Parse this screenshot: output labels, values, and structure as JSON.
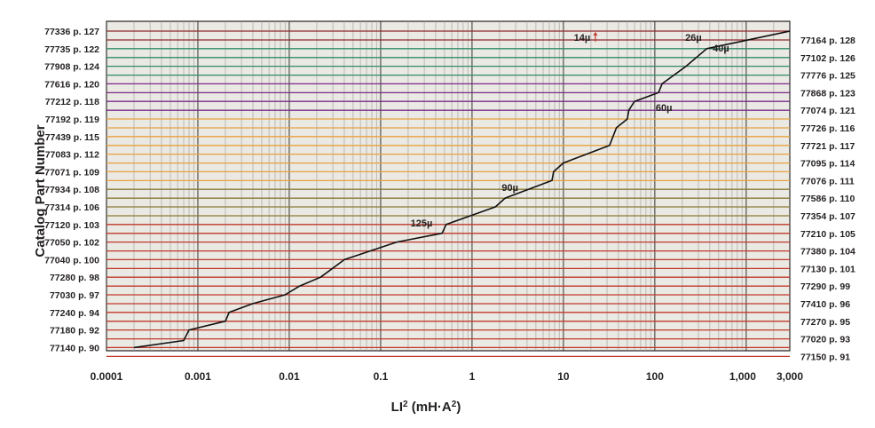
{
  "chart_data": {
    "type": "line",
    "xlabel_main": "LI",
    "xlabel_sup": "2",
    "xlabel_rest": " (mH·A",
    "xlabel_sup2": "2",
    "xlabel_end": ")",
    "ylabel": "Catalog Part Number",
    "x_scale": "log",
    "xlim": [
      0.0001,
      3000
    ],
    "x_ticks": [
      {
        "value": 0.0001,
        "label": "0.0001"
      },
      {
        "value": 0.001,
        "label": "0.001"
      },
      {
        "value": 0.01,
        "label": "0.01"
      },
      {
        "value": 0.1,
        "label": "0.1"
      },
      {
        "value": 1,
        "label": "1"
      },
      {
        "value": 10,
        "label": "10"
      },
      {
        "value": 100,
        "label": "100"
      },
      {
        "value": 1000,
        "label": "1,000"
      },
      {
        "value": 3000,
        "label": "3,000"
      }
    ],
    "grid": true,
    "colors": {
      "background": "#ebe9e3",
      "curve": "#111111",
      "maroon": "#8b2a2a",
      "red": "#c0392b",
      "olive": "#8a7a35",
      "orange": "#e8a040",
      "purple": "#7b2a8a",
      "green": "#2e8b6a"
    },
    "rows": [
      {
        "left": "77336 p. 127",
        "right": "77164 p. 128",
        "color": "maroon"
      },
      {
        "left": "77735 p. 122",
        "right": "77102 p. 126",
        "color": "green"
      },
      {
        "left": "77908 p. 124",
        "right": "77776 p. 125",
        "color": "green"
      },
      {
        "left": "77616 p. 120",
        "right": "77868 p. 123",
        "color": "purple"
      },
      {
        "left": "77212 p. 118",
        "right": "77074 p. 121",
        "color": "purple"
      },
      {
        "left": "77192 p. 119",
        "right": "77726 p. 116",
        "color": "orange"
      },
      {
        "left": "77439 p. 115",
        "right": "77721 p. 117",
        "color": "orange"
      },
      {
        "left": "77083 p. 112",
        "right": "77095 p. 114",
        "color": "orange"
      },
      {
        "left": "77071 p. 109",
        "right": "77076 p. 111",
        "color": "orange"
      },
      {
        "left": "77934 p. 108",
        "right": "77586 p. 110",
        "color": "olive"
      },
      {
        "left": "77314 p. 106",
        "right": "77354 p. 107",
        "color": "olive"
      },
      {
        "left": "77120 p. 103",
        "right": "77210 p. 105",
        "color": "red"
      },
      {
        "left": "77050 p. 102",
        "right": "77380 p. 104",
        "color": "red"
      },
      {
        "left": "77040 p. 100",
        "right": "77130 p. 101",
        "color": "red"
      },
      {
        "left": "77280 p. 98",
        "right": "77290 p. 99",
        "color": "red"
      },
      {
        "left": "77030 p. 97",
        "right": "77410 p. 96",
        "color": "red"
      },
      {
        "left": "77240 p. 94",
        "right": "77270 p. 95",
        "color": "red"
      },
      {
        "left": "77180 p. 92",
        "right": "77020 p. 93",
        "color": "red"
      },
      {
        "left": "77140 p. 90",
        "right": "77150 p. 91",
        "color": "red"
      }
    ],
    "curve": [
      {
        "x": 0.0002,
        "row": 18
      },
      {
        "x": 0.0007,
        "row": 17.6
      },
      {
        "x": 0.0008,
        "row": 17
      },
      {
        "x": 0.002,
        "row": 16.5
      },
      {
        "x": 0.0022,
        "row": 16
      },
      {
        "x": 0.004,
        "row": 15.5
      },
      {
        "x": 0.009,
        "row": 15
      },
      {
        "x": 0.013,
        "row": 14.5
      },
      {
        "x": 0.022,
        "row": 14
      },
      {
        "x": 0.04,
        "row": 13
      },
      {
        "x": 0.15,
        "row": 12
      },
      {
        "x": 0.47,
        "row": 11.5
      },
      {
        "x": 0.52,
        "row": 11
      },
      {
        "x": 1.8,
        "row": 10
      },
      {
        "x": 2.3,
        "row": 9.5
      },
      {
        "x": 7.5,
        "row": 8.5
      },
      {
        "x": 7.8,
        "row": 8
      },
      {
        "x": 10,
        "row": 7.5
      },
      {
        "x": 32,
        "row": 6.5
      },
      {
        "x": 38,
        "row": 5.5
      },
      {
        "x": 50,
        "row": 5
      },
      {
        "x": 52,
        "row": 4.5
      },
      {
        "x": 60,
        "row": 4
      },
      {
        "x": 110,
        "row": 3.5
      },
      {
        "x": 120,
        "row": 3
      },
      {
        "x": 220,
        "row": 2
      },
      {
        "x": 370,
        "row": 1
      },
      {
        "x": 3000,
        "row": 0
      }
    ],
    "annotations": [
      {
        "text": "14µ",
        "x": 16,
        "row": 0.55,
        "arrow": true
      },
      {
        "text": "26µ",
        "x": 265,
        "row": 0.55,
        "arrow": false
      },
      {
        "text": "40µ",
        "x": 530,
        "row": 1.15,
        "arrow": false
      },
      {
        "text": "60µ",
        "x": 126,
        "row": 4.55,
        "arrow": false
      },
      {
        "text": "90µ",
        "x": 2.6,
        "row": 9.1,
        "arrow": false
      },
      {
        "text": "125µ",
        "x": 0.28,
        "row": 11.1,
        "arrow": false
      }
    ]
  }
}
